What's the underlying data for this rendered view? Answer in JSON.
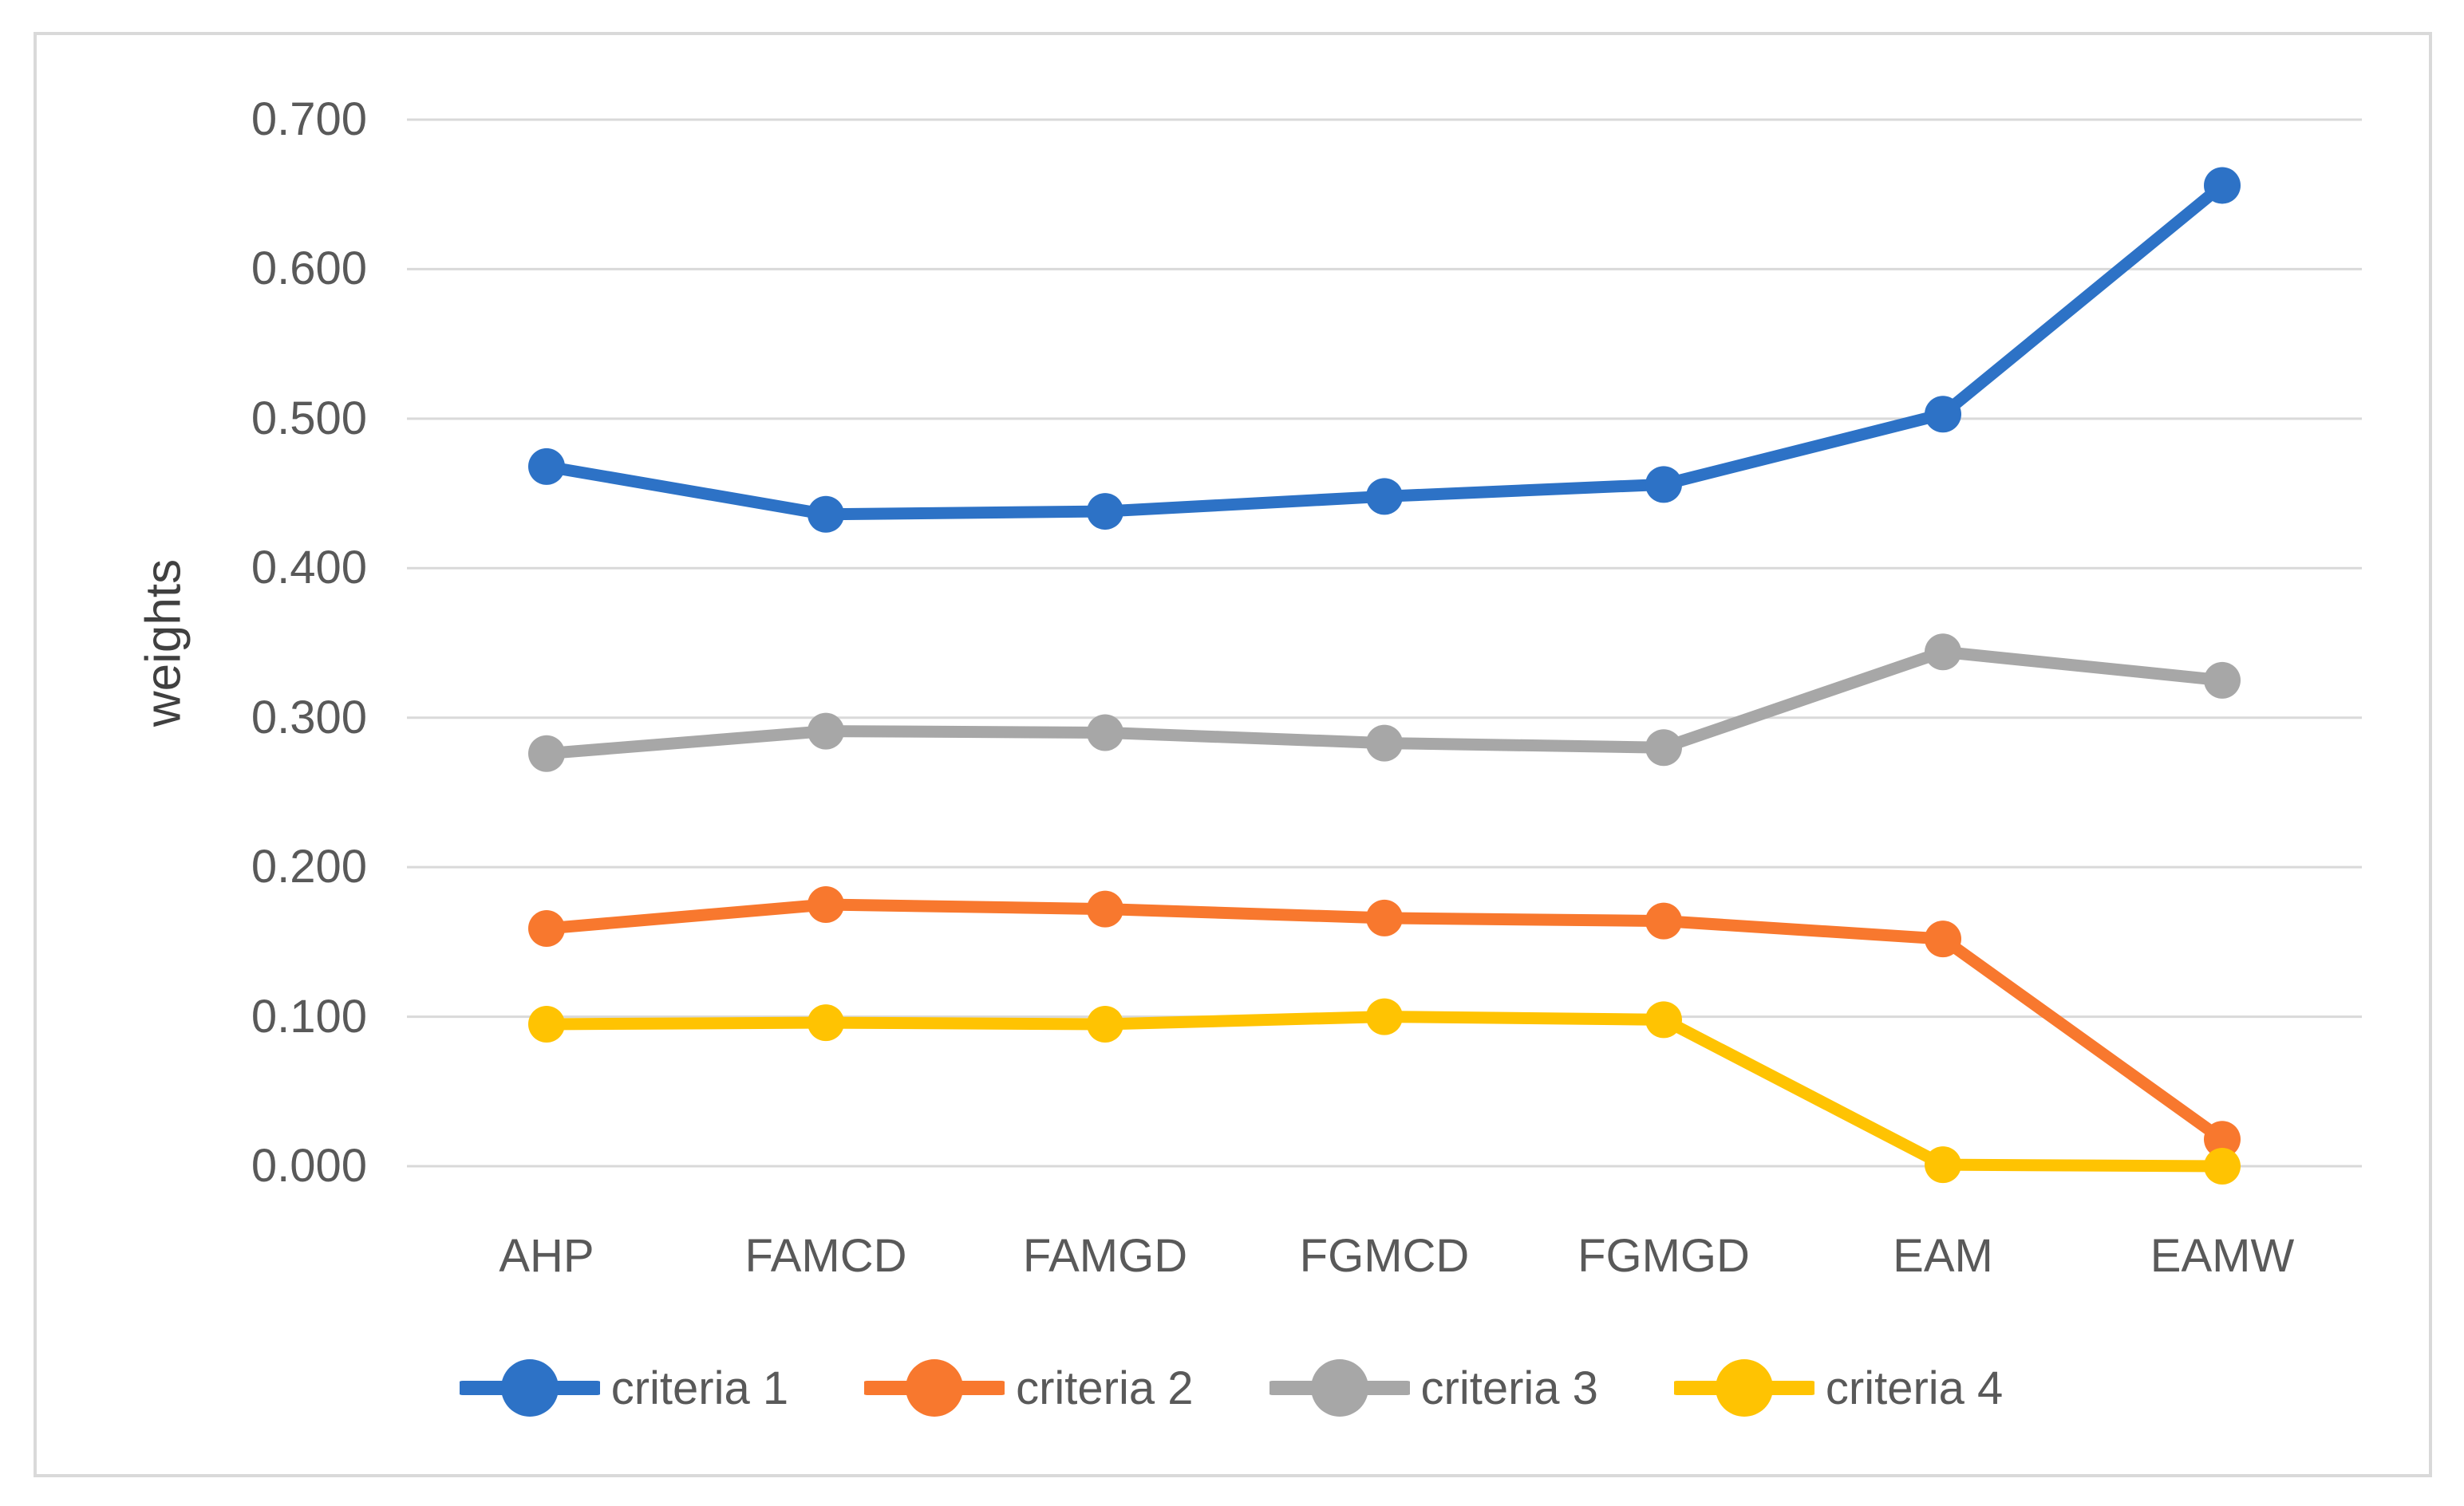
{
  "figure": {
    "background_color": "#ffffff",
    "frame_border_color": "#d9d9d9",
    "grid_color": "#d9d9d9",
    "axis_text_color": "#595959",
    "ylabel_text_color": "#404040"
  },
  "chart_data": {
    "type": "line",
    "title": "",
    "xlabel": "",
    "ylabel": "weights",
    "categories": [
      "AHP",
      "FAMCD",
      "FAMGD",
      "FGMCD",
      "FGMGD",
      "EAM",
      "EAMW"
    ],
    "series": [
      {
        "name": "criteria 1",
        "color": "#2d72c6",
        "marker": "circle",
        "values": [
          0.468,
          0.436,
          0.438,
          0.448,
          0.456,
          0.503,
          0.656
        ]
      },
      {
        "name": "criteria 2",
        "color": "#f8782e",
        "marker": "circle",
        "values": [
          0.159,
          0.175,
          0.172,
          0.166,
          0.164,
          0.152,
          0.018
        ]
      },
      {
        "name": "criteria 3",
        "color": "#a7a7a7",
        "marker": "circle",
        "values": [
          0.276,
          0.291,
          0.29,
          0.283,
          0.28,
          0.344,
          0.325
        ]
      },
      {
        "name": "criteria 4",
        "color": "#ffc302",
        "marker": "circle",
        "values": [
          0.095,
          0.096,
          0.095,
          0.1,
          0.098,
          0.001,
          0.0
        ]
      }
    ],
    "ylim": [
      0.0,
      0.7
    ],
    "ytick_labels": [
      "0.000",
      "0.100",
      "0.200",
      "0.300",
      "0.400",
      "0.500",
      "0.600",
      "0.700"
    ],
    "grid": "horizontal",
    "legend_position": "bottom",
    "legend_labels": [
      "criteria 1",
      "criteria 2",
      "criteria 3",
      "criteria 4"
    ]
  }
}
